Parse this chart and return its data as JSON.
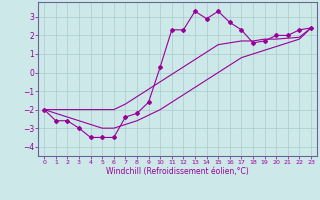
{
  "xlabel": "Windchill (Refroidissement éolien,°C)",
  "background_color": "#cce8e8",
  "grid_color": "#aacccc",
  "line_color": "#990099",
  "marker_color": "#990099",
  "x_hours": [
    0,
    1,
    2,
    3,
    4,
    5,
    6,
    7,
    8,
    9,
    10,
    11,
    12,
    13,
    14,
    15,
    16,
    17,
    18,
    19,
    20,
    21,
    22,
    23
  ],
  "y_main": [
    -2.0,
    -2.6,
    -2.6,
    -3.0,
    -3.5,
    -3.5,
    -3.5,
    -2.4,
    -2.2,
    -1.6,
    0.3,
    2.3,
    2.3,
    3.3,
    2.9,
    3.3,
    2.7,
    2.3,
    1.6,
    1.7,
    2.0,
    2.0,
    2.3,
    2.4
  ],
  "y_upper": [
    -2.0,
    -2.0,
    -2.0,
    -2.0,
    -2.0,
    -2.0,
    -2.0,
    -1.7,
    -1.3,
    -0.9,
    -0.5,
    -0.1,
    0.3,
    0.7,
    1.1,
    1.5,
    1.6,
    1.7,
    1.7,
    1.8,
    1.8,
    1.85,
    1.9,
    2.4
  ],
  "y_lower": [
    -2.0,
    -2.2,
    -2.4,
    -2.6,
    -2.8,
    -3.0,
    -3.0,
    -2.8,
    -2.6,
    -2.3,
    -2.0,
    -1.6,
    -1.2,
    -0.8,
    -0.4,
    0.0,
    0.4,
    0.8,
    1.0,
    1.2,
    1.4,
    1.6,
    1.8,
    2.4
  ],
  "ylim": [
    -4.5,
    3.8
  ],
  "yticks": [
    -4,
    -3,
    -2,
    -1,
    0,
    1,
    2,
    3
  ],
  "xlim": [
    -0.5,
    23.5
  ],
  "xticks": [
    0,
    1,
    2,
    3,
    4,
    5,
    6,
    7,
    8,
    9,
    10,
    11,
    12,
    13,
    14,
    15,
    16,
    17,
    18,
    19,
    20,
    21,
    22,
    23
  ]
}
